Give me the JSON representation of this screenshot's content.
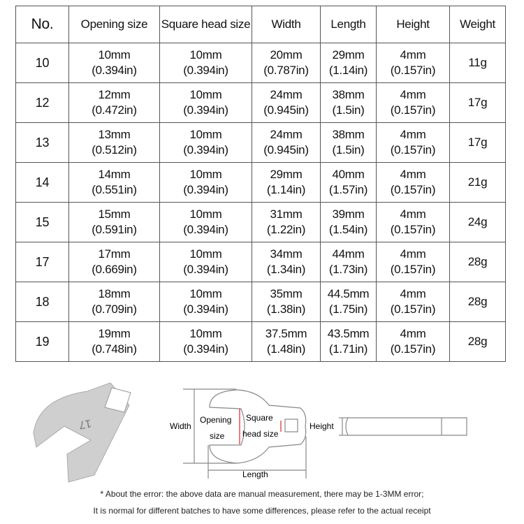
{
  "table": {
    "headers": [
      "No.",
      "Opening size",
      "Square head size",
      "Width",
      "Length",
      "Height",
      "Weight"
    ],
    "rows": [
      [
        "10",
        "10mm|(0.394in)",
        "10mm|(0.394in)",
        "20mm|(0.787in)",
        "29mm|(1.14in)",
        "4mm|(0.157in)",
        "11g"
      ],
      [
        "12",
        "12mm|(0.472in)",
        "10mm|(0.394in)",
        "24mm|(0.945in)",
        "38mm|(1.5in)",
        "4mm|(0.157in)",
        "17g"
      ],
      [
        "13",
        "13mm|(0.512in)",
        "10mm|(0.394in)",
        "24mm|(0.945in)",
        "38mm|(1.5in)",
        "4mm|(0.157in)",
        "17g"
      ],
      [
        "14",
        "14mm|(0.551in)",
        "10mm|(0.394in)",
        "29mm|(1.14in)",
        "40mm|(1.57in)",
        "4mm|(0.157in)",
        "21g"
      ],
      [
        "15",
        "15mm|(0.591in)",
        "10mm|(0.394in)",
        "31mm|(1.22in)",
        "39mm|(1.54in)",
        "4mm|(0.157in)",
        "24g"
      ],
      [
        "17",
        "17mm|(0.669in)",
        "10mm|(0.394in)",
        "34mm|(1.34in)",
        "44mm|(1.73in)",
        "4mm|(0.157in)",
        "28g"
      ],
      [
        "18",
        "18mm|(0.709in)",
        "10mm|(0.394in)",
        "35mm|(1.38in)",
        "44.5mm|(1.75in)",
        "4mm|(0.157in)",
        "28g"
      ],
      [
        "19",
        "19mm|(0.748in)",
        "10mm|(0.394in)",
        "37.5mm|(1.48in)",
        "43.5mm|(1.71in)",
        "4mm|(0.157in)",
        "28g"
      ]
    ]
  },
  "diagram": {
    "product_stamp": "17",
    "width_label": "Width",
    "opening_label_1": "Opening",
    "opening_label_2": "size",
    "square_label_1": "Square",
    "square_label_2": "head size",
    "height_label": "Height",
    "length_label": "Length"
  },
  "notes": {
    "line1": "* About the error: the above data are manual measurement, there may be 1-3MM error;",
    "line2": "It is normal for different batches to have some differences, please refer to the actual receipt"
  },
  "colors": {
    "border": "#555555",
    "dimension_red": "#d9262c",
    "metal": "#c9c9c9"
  }
}
